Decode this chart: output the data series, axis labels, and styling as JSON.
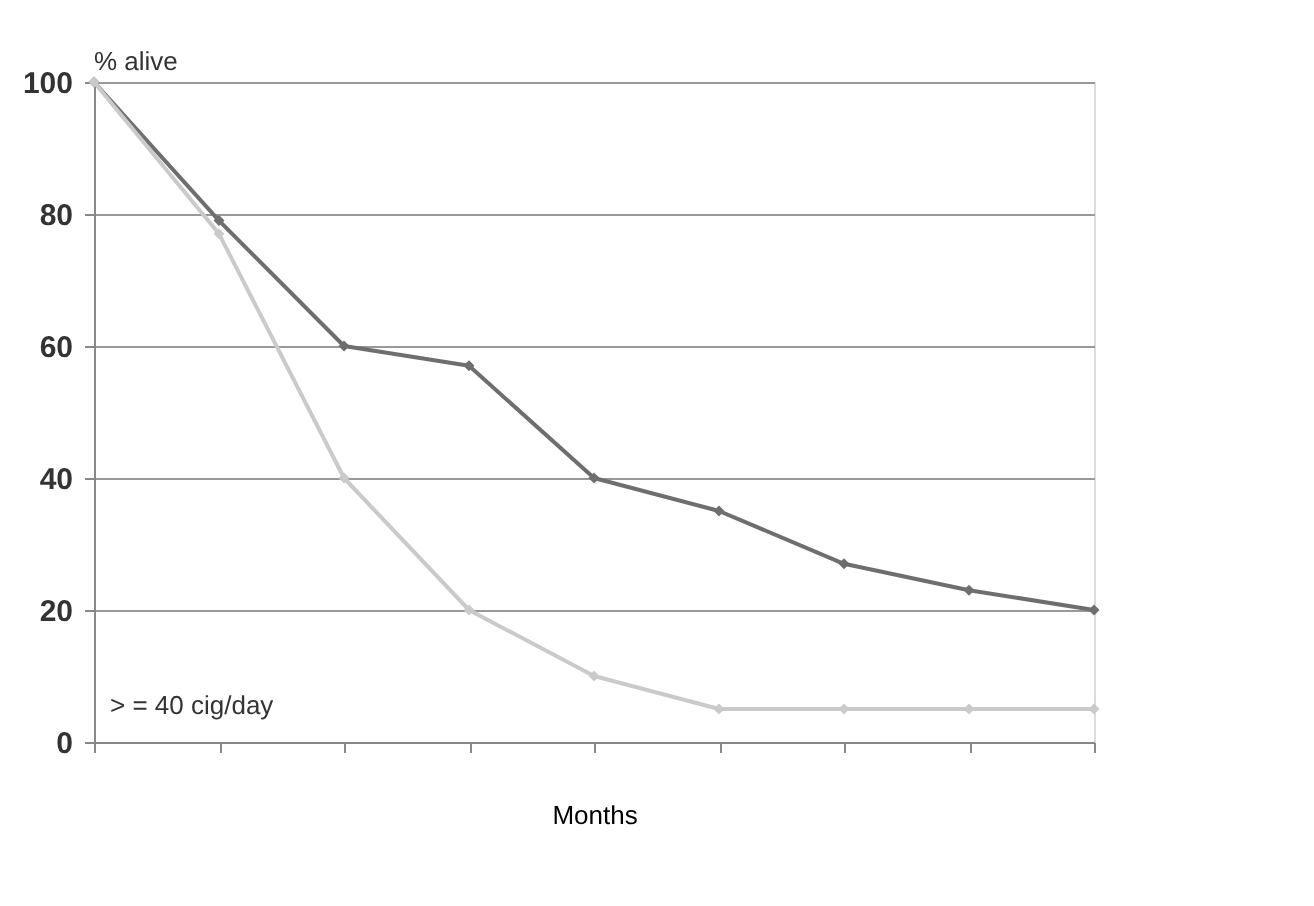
{
  "chart_data": {
    "type": "line",
    "xlabel": "Months",
    "ylabel": "% alive",
    "categories": [
      null,
      null,
      null,
      null,
      null,
      null,
      null,
      null,
      null
    ],
    "series": [
      {
        "color": "#6e6e6e",
        "values": [
          100,
          79,
          60,
          57,
          40,
          35,
          27,
          23,
          20
        ]
      },
      {
        "color": "#cacaca",
        "values": [
          100,
          77,
          40,
          20,
          10,
          5,
          5,
          5,
          5
        ]
      }
    ],
    "ylim": [
      0,
      100
    ],
    "yticks": [
      0,
      20,
      40,
      60,
      80,
      100
    ],
    "grid": "y",
    "tick_labels": "y",
    "marker": "diamond",
    "line_style": "solid",
    "annotations": [
      "> = 40 cig/day"
    ]
  }
}
